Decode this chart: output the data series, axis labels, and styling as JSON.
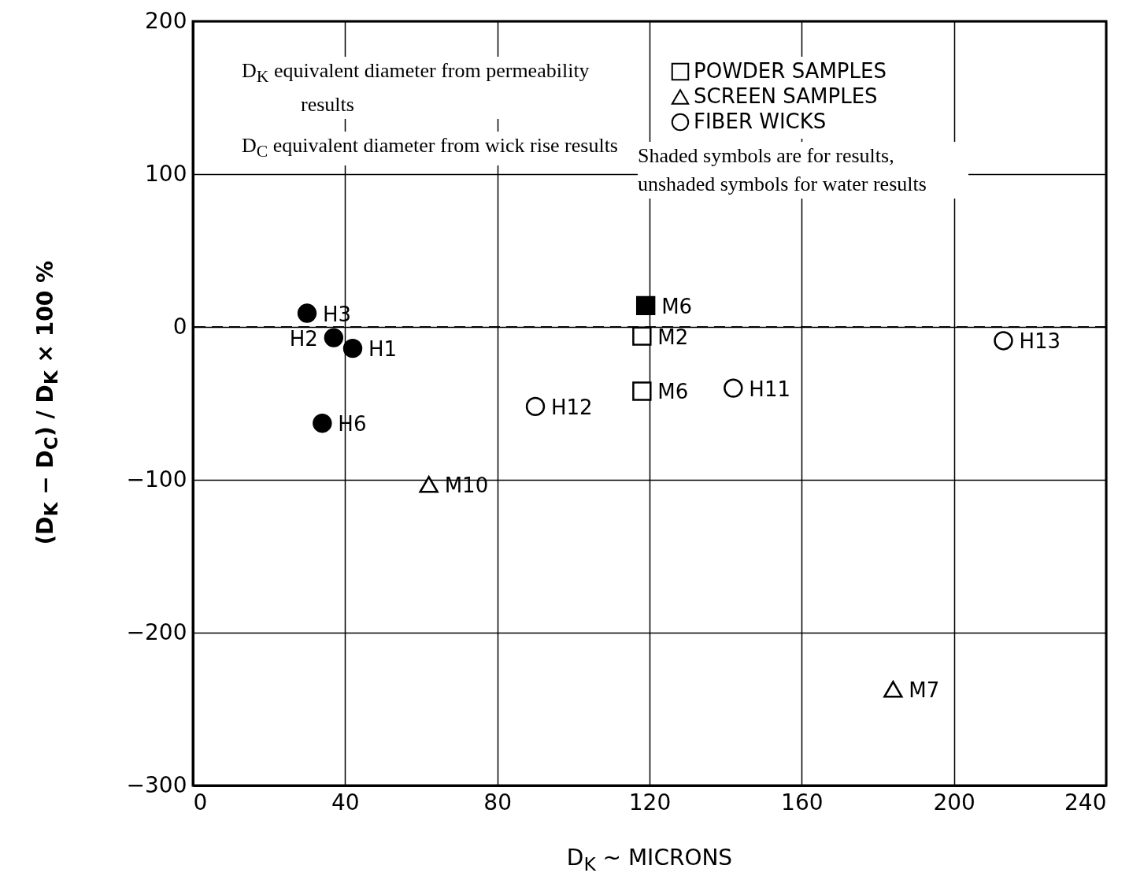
{
  "chart_data": {
    "type": "scatter",
    "xlabel": "D$_{K}$ ~ MICRONS",
    "ylabel": "(D$_{K}$ − D$_{C}$) / D$_{K}$ × 100 %",
    "xlim": [
      0,
      240
    ],
    "xticks": [
      0,
      40,
      80,
      120,
      160,
      200,
      240
    ],
    "ylim": [
      -300,
      200
    ],
    "yticks": [
      -300,
      -200,
      -100,
      0,
      100,
      200
    ],
    "grid": true,
    "legend": "top right",
    "ref_lines": [
      {
        "axis": "y",
        "value": 0,
        "line_style": "dashed"
      }
    ],
    "annotations": [
      "D$_{K}$   equivalent diameter from permeability results",
      "D$_{C}$   equivalent diameter from wick rise results",
      "Shaded symbols are for results, unshaded symbols for water results"
    ],
    "series": [
      {
        "name": "POWDER SAMPLES",
        "color": "#ffffff",
        "marker": "square",
        "x": [
          118,
          118
        ],
        "values": [
          -6,
          -42
        ],
        "value_labels": [
          "M2",
          "M6"
        ]
      },
      {
        "name": "SCREEN SAMPLES",
        "color": "#ffffff",
        "marker": "triangle",
        "x": [
          62,
          184
        ],
        "values": [
          -103,
          -237
        ],
        "value_labels": [
          "M10",
          "M7"
        ]
      },
      {
        "name": "FIBER WICKS",
        "color": "#ffffff",
        "marker": "circle",
        "x": [
          90,
          142,
          213
        ],
        "values": [
          -52,
          -40,
          -9
        ],
        "value_labels": [
          "H12",
          "H11",
          "H13"
        ]
      },
      {
        "color": "#000000",
        "marker": "square",
        "x": [
          119
        ],
        "values": [
          14
        ],
        "value_labels": [
          "M6"
        ]
      },
      {
        "color": "#000000",
        "marker": "circle",
        "x": [
          30,
          37,
          42,
          34
        ],
        "values": [
          9,
          -7,
          -14,
          -63
        ],
        "value_labels": [
          "H3",
          "H2",
          "H1",
          "H6"
        ]
      }
    ]
  }
}
